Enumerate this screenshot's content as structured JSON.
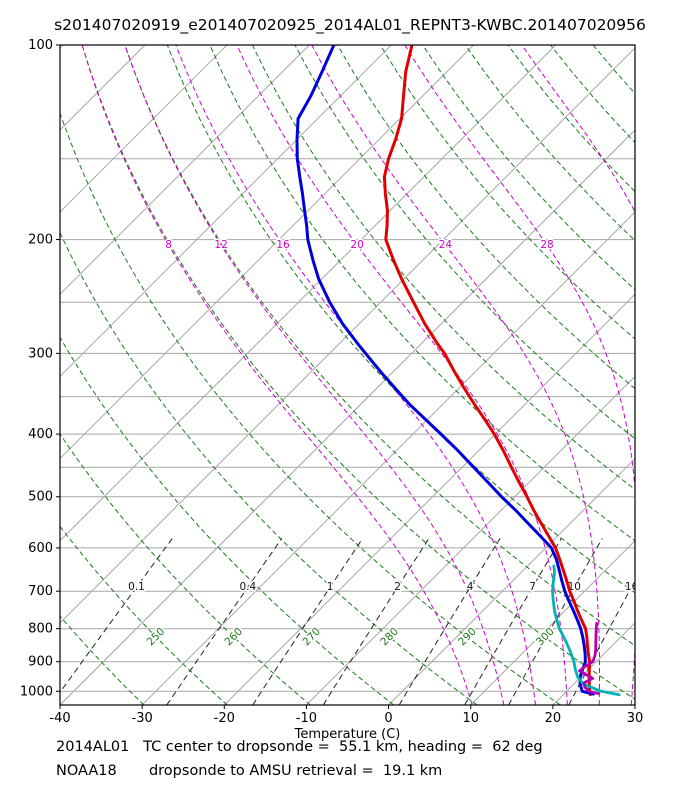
{
  "title": "s201407020919_e201407020925_2014AL01_REPNT3-KWBC.201407020956",
  "footer": {
    "line1": "2014AL01   TC center to dropsonde =  55.1 km, heading =  62 deg",
    "line2": "NOAA18       dropsonde to AMSU retrieval =  19.1 km"
  },
  "chart_data": {
    "type": "line",
    "diagram": "skew-t-log-p",
    "xlabel": "Temperature (C)",
    "xlim": [
      -40,
      30
    ],
    "x_ticks": [
      -40,
      -30,
      -20,
      -10,
      0,
      10,
      20,
      30
    ],
    "p_range": [
      1050,
      100
    ],
    "pressure_ticks": [
      100,
      200,
      300,
      400,
      500,
      600,
      700,
      800,
      900,
      1000
    ],
    "pressure_grid": [
      100,
      150,
      200,
      250,
      300,
      350,
      400,
      450,
      500,
      600,
      700,
      800,
      900,
      1000
    ],
    "skew_deg": 45,
    "isotherms": {
      "min": -120,
      "max": 30,
      "step": 10
    },
    "dry_adiabats_K": {
      "min": 230,
      "max": 440,
      "step": 10,
      "labels": [
        250,
        260,
        270,
        280,
        290,
        300
      ],
      "label_pressure": 830
    },
    "moist_adiabats_C": {
      "values": [
        8,
        12,
        16,
        20,
        24,
        28,
        32
      ],
      "label_pressure": 204
    },
    "mixing_ratio_gkg": {
      "values": [
        0.1,
        0.4,
        1,
        2,
        4,
        7,
        10,
        16
      ],
      "label_pressure": 690,
      "p_top": 580
    },
    "colors": {
      "grid_gray": "#a6a6a6",
      "dry_adiabat_green": "#1a7a1a",
      "moist_adiabat_magenta": "#cc00cc",
      "mixing_ratio_black": "#222222",
      "red_profile": "#e00000",
      "blue_profile": "#0000dd",
      "cyan_profile": "#00b2b2",
      "purple_profile": "#b300b3"
    },
    "series": [
      {
        "name": "red-temperature",
        "color": "#e00000",
        "width": 3,
        "points": [
          [
            100,
            -77.5
          ],
          [
            110,
            -75
          ],
          [
            120,
            -72.3
          ],
          [
            130,
            -69.8
          ],
          [
            140,
            -68
          ],
          [
            150,
            -66.5
          ],
          [
            160,
            -64.8
          ],
          [
            170,
            -62.6
          ],
          [
            180,
            -60.4
          ],
          [
            190,
            -58.6
          ],
          [
            200,
            -57
          ],
          [
            215,
            -53.6
          ],
          [
            230,
            -50.3
          ],
          [
            250,
            -46
          ],
          [
            270,
            -42
          ],
          [
            290,
            -38
          ],
          [
            300,
            -36
          ],
          [
            320,
            -32.6
          ],
          [
            340,
            -29.3
          ],
          [
            360,
            -26.1
          ],
          [
            380,
            -23
          ],
          [
            400,
            -20.1
          ],
          [
            425,
            -16.9
          ],
          [
            450,
            -14
          ],
          [
            475,
            -11.2
          ],
          [
            500,
            -8.5
          ],
          [
            525,
            -6
          ],
          [
            550,
            -3.5
          ],
          [
            575,
            -1.1
          ],
          [
            600,
            1.2
          ],
          [
            625,
            3.1
          ],
          [
            650,
            4.9
          ],
          [
            675,
            6.6
          ],
          [
            700,
            8.2
          ],
          [
            725,
            9.9
          ],
          [
            750,
            11.5
          ],
          [
            775,
            13.1
          ],
          [
            800,
            14.7
          ],
          [
            825,
            15.9
          ],
          [
            850,
            17
          ],
          [
            875,
            18.1
          ],
          [
            900,
            19.2
          ],
          [
            925,
            20.1
          ],
          [
            950,
            21
          ],
          [
            975,
            21.9
          ],
          [
            1000,
            22.8
          ],
          [
            1012,
            23.3
          ]
        ]
      },
      {
        "name": "blue-temperature",
        "color": "#0000dd",
        "width": 3,
        "points": [
          [
            100,
            -87
          ],
          [
            110,
            -85.2
          ],
          [
            120,
            -83.6
          ],
          [
            130,
            -82.4
          ],
          [
            140,
            -80
          ],
          [
            150,
            -77.6
          ],
          [
            160,
            -75.1
          ],
          [
            170,
            -72.7
          ],
          [
            180,
            -70.5
          ],
          [
            190,
            -68.4
          ],
          [
            200,
            -66.5
          ],
          [
            215,
            -63.4
          ],
          [
            230,
            -60.4
          ],
          [
            250,
            -56.2
          ],
          [
            270,
            -52
          ],
          [
            290,
            -47.7
          ],
          [
            300,
            -45.6
          ],
          [
            320,
            -41.6
          ],
          [
            340,
            -37.7
          ],
          [
            360,
            -34
          ],
          [
            380,
            -30.2
          ],
          [
            400,
            -26.6
          ],
          [
            425,
            -22.4
          ],
          [
            450,
            -18.6
          ],
          [
            475,
            -15
          ],
          [
            500,
            -11.6
          ],
          [
            525,
            -8.2
          ],
          [
            550,
            -5.1
          ],
          [
            575,
            -2.1
          ],
          [
            600,
            0.7
          ],
          [
            625,
            2.7
          ],
          [
            650,
            4.4
          ],
          [
            675,
            6
          ],
          [
            700,
            7.6
          ],
          [
            725,
            9.3
          ],
          [
            750,
            11
          ],
          [
            775,
            12.6
          ],
          [
            800,
            14.1
          ],
          [
            825,
            15.4
          ],
          [
            850,
            16.6
          ],
          [
            875,
            17.7
          ],
          [
            900,
            18.7
          ],
          [
            925,
            19.3
          ],
          [
            950,
            19.9
          ],
          [
            975,
            20.8
          ],
          [
            1000,
            21.9
          ],
          [
            1010,
            23.6
          ]
        ]
      },
      {
        "name": "cyan-dewpoint",
        "color": "#00b2b2",
        "width": 2.8,
        "points": [
          [
            640,
            3.2
          ],
          [
            650,
            3.8
          ],
          [
            660,
            4.3
          ],
          [
            680,
            5.2
          ],
          [
            700,
            6.1
          ],
          [
            725,
            7.4
          ],
          [
            750,
            8.7
          ],
          [
            775,
            10.1
          ],
          [
            800,
            11.5
          ],
          [
            825,
            13.1
          ],
          [
            850,
            14.6
          ],
          [
            875,
            16
          ],
          [
            900,
            17.3
          ],
          [
            925,
            18.4
          ],
          [
            950,
            19.6
          ],
          [
            975,
            21.2
          ],
          [
            1000,
            24.2
          ],
          [
            1012,
            26.8
          ]
        ]
      },
      {
        "name": "purple-profile",
        "color": "#b300b3",
        "width": 2.8,
        "points": [
          [
            785,
            15.4
          ],
          [
            800,
            16
          ],
          [
            820,
            16.8
          ],
          [
            840,
            17.6
          ],
          [
            860,
            18.4
          ],
          [
            880,
            19.1
          ],
          [
            900,
            19.6
          ],
          [
            915,
            19.2
          ],
          [
            930,
            19.1
          ],
          [
            945,
            20.6
          ],
          [
            955,
            21.6
          ],
          [
            970,
            21.1
          ],
          [
            985,
            21.7
          ],
          [
            1000,
            22.7
          ],
          [
            1008,
            24.1
          ]
        ]
      }
    ]
  }
}
